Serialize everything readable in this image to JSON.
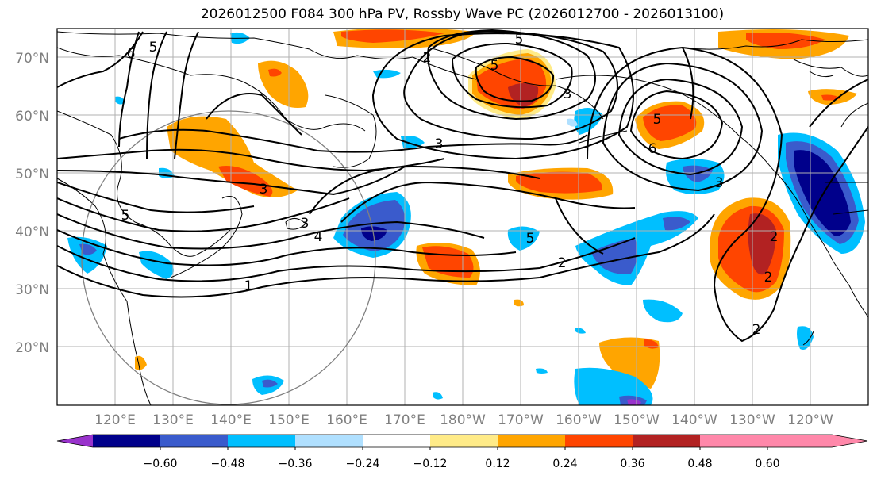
{
  "title": "2026012500 F084 300 hPa PV, Rossby Wave PC (2026012700 - 2026013100)",
  "lat_labels": [
    "70°N",
    "60°N",
    "50°N",
    "40°N",
    "30°N",
    "20°N"
  ],
  "lon_labels": [
    "120°E",
    "130°E",
    "140°E",
    "150°E",
    "160°E",
    "170°E",
    "180°W",
    "170°W",
    "160°W",
    "150°W",
    "140°W",
    "130°W",
    "120°W"
  ],
  "contour_labels": [
    "6",
    "5",
    "5",
    "2",
    "5",
    "3",
    "3",
    "3",
    "3",
    "4",
    "5",
    "2",
    "1",
    "5",
    "5",
    "6",
    "3",
    "2",
    "2",
    "2"
  ],
  "colorbar": {
    "ticks": [
      "−0.60",
      "−0.48",
      "−0.36",
      "−0.24",
      "−0.12",
      "0.12",
      "0.24",
      "0.36",
      "0.48",
      "0.60"
    ],
    "colors": [
      "#9933cc",
      "#00008b",
      "#3a5bcc",
      "#00bfff",
      "#b0e0ff",
      "#ffffff",
      "#ffeb88",
      "#ffa500",
      "#ff4500",
      "#b22222",
      "#ff88aa"
    ]
  },
  "colors": {
    "land_outline": "#000000",
    "gridline": "#b0b0b0",
    "circle": "#808080"
  }
}
